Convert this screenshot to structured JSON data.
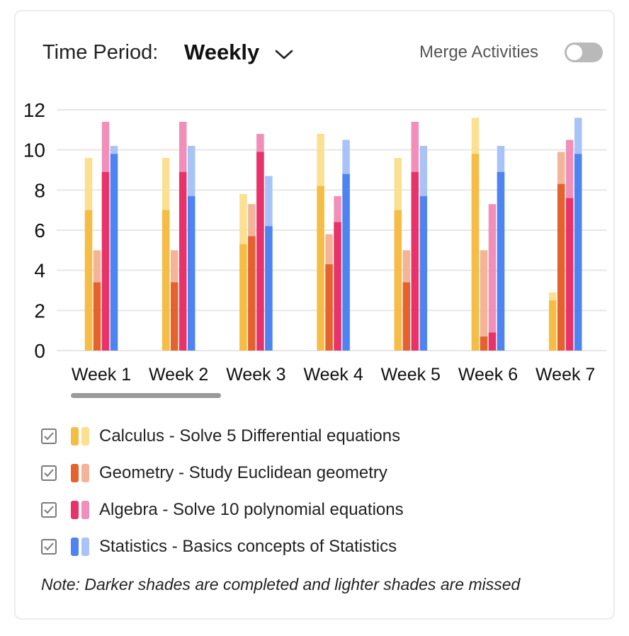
{
  "header": {
    "time_period_label": "Time Period:",
    "time_period_value": "Weekly",
    "merge_label": "Merge Activities",
    "merge_enabled": false
  },
  "chart_data": {
    "type": "bar",
    "stacked_within_bar": true,
    "categories": [
      "Week 1",
      "Week 2",
      "Week 3",
      "Week 4",
      "Week 5",
      "Week 6",
      "Week 7"
    ],
    "ylim": [
      0,
      12
    ],
    "yticks": [
      0,
      2,
      4,
      6,
      8,
      10,
      12
    ],
    "grid": true,
    "series": [
      {
        "name": "Calculus - Solve 5 Differential equations",
        "completed": [
          7.0,
          7.0,
          5.3,
          8.2,
          7.0,
          9.8,
          2.5
        ],
        "total": [
          9.6,
          9.6,
          7.8,
          10.8,
          9.6,
          11.6,
          2.9
        ],
        "color_dark": "#f5bd45",
        "color_light": "#fbe092"
      },
      {
        "name": "Geometry - Study Euclidean geometry",
        "completed": [
          3.4,
          3.4,
          5.7,
          4.3,
          3.4,
          0.7,
          8.3
        ],
        "total": [
          5.0,
          5.0,
          7.3,
          5.8,
          5.0,
          5.0,
          9.9
        ],
        "color_dark": "#e5622f",
        "color_light": "#f3b497"
      },
      {
        "name": "Algebra - Solve 10 polynomial equations",
        "completed": [
          8.9,
          8.9,
          9.9,
          6.4,
          8.9,
          0.9,
          7.6
        ],
        "total": [
          11.4,
          11.4,
          10.8,
          7.7,
          11.4,
          7.3,
          10.5
        ],
        "color_dark": "#e8336a",
        "color_light": "#f18fb8"
      },
      {
        "name": "Statistics - Basics concepts of Statistics",
        "completed": [
          9.8,
          7.7,
          6.2,
          8.8,
          7.7,
          8.9,
          9.8
        ],
        "total": [
          10.2,
          10.2,
          8.7,
          10.5,
          10.2,
          10.2,
          11.6
        ],
        "color_dark": "#4e84f1",
        "color_light": "#a8c3f7"
      }
    ]
  },
  "legend": {
    "items": [
      {
        "label": "Calculus - Solve 5 Differential equations",
        "checked": true
      },
      {
        "label": "Geometry - Study Euclidean geometry",
        "checked": true
      },
      {
        "label": "Algebra - Solve 10 polynomial equations",
        "checked": true
      },
      {
        "label": "Statistics - Basics concepts of Statistics",
        "checked": true
      }
    ]
  },
  "note": "Note: Darker shades are completed and lighter shades are missed"
}
